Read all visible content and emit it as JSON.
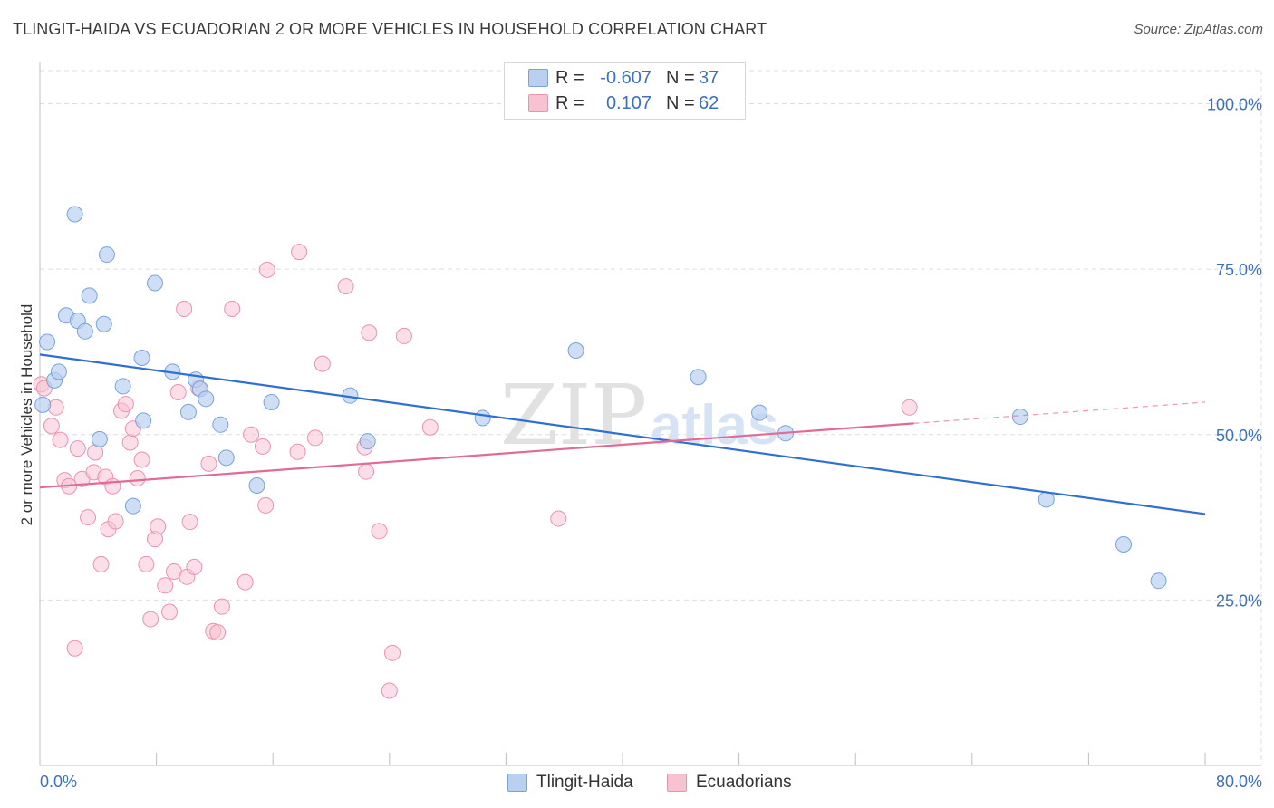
{
  "header": {
    "title": "TLINGIT-HAIDA VS ECUADORIAN 2 OR MORE VEHICLES IN HOUSEHOLD CORRELATION CHART",
    "source": "Source: ZipAtlas.com"
  },
  "watermark": {
    "zip": "ZIP",
    "atlas": "atlas"
  },
  "legend_top": {
    "rows": [
      {
        "r_label": "R =",
        "r_value": "-0.607",
        "n_label": "N =",
        "n_value": "37"
      },
      {
        "r_label": "R =",
        "r_value": "0.107",
        "n_label": "N =",
        "n_value": "62"
      }
    ]
  },
  "legend_bottom": {
    "items": [
      "Tlingit-Haida",
      "Ecuadorians"
    ]
  },
  "colors": {
    "blue_fill": "#b9d0f1",
    "blue_stroke": "#7aa2dc",
    "blue_line": "#2f6fcf",
    "pink_fill": "#f7c3d3",
    "pink_stroke": "#e993ae",
    "pink_line": "#e26a96",
    "tick_text": "#3a6fc4",
    "grid": "#dedede"
  },
  "chart_data": {
    "type": "scatter",
    "title": "TLINGIT-HAIDA VS ECUADORIAN 2 OR MORE VEHICLES IN HOUSEHOLD CORRELATION CHART",
    "xlabel": "",
    "ylabel": "2 or more Vehicles in Household",
    "xlim": [
      0,
      80
    ],
    "ylim": [
      0,
      105
    ],
    "x_tick_labels": [
      "0.0%",
      "80.0%"
    ],
    "y_ticks": [
      25,
      50,
      75,
      100
    ],
    "y_tick_labels": [
      "25.0%",
      "50.0%",
      "75.0%",
      "100.0%"
    ],
    "grid": true,
    "legend_placement": "top-center and bottom",
    "series": [
      {
        "name": "Tlingit-Haida",
        "R": -0.607,
        "N": 37,
        "trend": {
          "x": [
            0,
            80
          ],
          "y": [
            62.1,
            38.0
          ]
        },
        "points": [
          [
            0.2,
            54.5
          ],
          [
            0.5,
            64.0
          ],
          [
            1.0,
            58.2
          ],
          [
            1.3,
            59.5
          ],
          [
            1.8,
            68.0
          ],
          [
            2.4,
            83.3
          ],
          [
            2.6,
            67.2
          ],
          [
            3.1,
            65.6
          ],
          [
            3.4,
            71.0
          ],
          [
            4.1,
            49.3
          ],
          [
            4.4,
            66.7
          ],
          [
            4.6,
            77.2
          ],
          [
            5.7,
            57.3
          ],
          [
            6.4,
            39.2
          ],
          [
            7.0,
            61.6
          ],
          [
            7.1,
            52.1
          ],
          [
            7.9,
            72.9
          ],
          [
            9.1,
            59.5
          ],
          [
            10.2,
            53.4
          ],
          [
            10.7,
            58.3
          ],
          [
            11.0,
            56.9
          ],
          [
            11.4,
            55.4
          ],
          [
            12.4,
            51.5
          ],
          [
            12.8,
            46.5
          ],
          [
            14.9,
            42.3
          ],
          [
            15.9,
            54.9
          ],
          [
            21.3,
            55.9
          ],
          [
            22.5,
            49.0
          ],
          [
            30.4,
            52.5
          ],
          [
            36.8,
            62.7
          ],
          [
            45.2,
            58.7
          ],
          [
            49.4,
            53.3
          ],
          [
            51.2,
            50.2
          ],
          [
            67.3,
            52.7
          ],
          [
            69.1,
            40.2
          ],
          [
            74.4,
            33.4
          ],
          [
            76.8,
            27.9
          ]
        ]
      },
      {
        "name": "Ecuadorians",
        "R": 0.107,
        "N": 62,
        "trend": {
          "x": [
            0,
            60
          ],
          "y": [
            42.0,
            51.7
          ]
        },
        "trend_dashed": {
          "x": [
            60,
            80
          ],
          "y": [
            51.7,
            54.9
          ]
        },
        "points": [
          [
            0.1,
            57.6
          ],
          [
            0.3,
            57.0
          ],
          [
            0.8,
            51.3
          ],
          [
            1.1,
            54.1
          ],
          [
            1.4,
            49.2
          ],
          [
            1.7,
            43.1
          ],
          [
            2.0,
            42.2
          ],
          [
            2.4,
            17.7
          ],
          [
            2.6,
            47.9
          ],
          [
            2.9,
            43.3
          ],
          [
            3.3,
            37.5
          ],
          [
            3.7,
            44.3
          ],
          [
            3.8,
            47.3
          ],
          [
            4.2,
            30.4
          ],
          [
            4.5,
            43.6
          ],
          [
            4.7,
            35.7
          ],
          [
            5.0,
            42.2
          ],
          [
            5.2,
            36.9
          ],
          [
            5.6,
            53.6
          ],
          [
            5.9,
            54.6
          ],
          [
            6.2,
            48.8
          ],
          [
            6.4,
            50.9
          ],
          [
            6.7,
            43.4
          ],
          [
            7.0,
            46.2
          ],
          [
            7.3,
            30.4
          ],
          [
            7.6,
            22.1
          ],
          [
            7.9,
            34.2
          ],
          [
            8.1,
            36.1
          ],
          [
            8.6,
            27.2
          ],
          [
            8.9,
            23.2
          ],
          [
            9.2,
            29.3
          ],
          [
            9.5,
            56.4
          ],
          [
            9.9,
            69.0
          ],
          [
            10.1,
            28.5
          ],
          [
            10.3,
            36.8
          ],
          [
            10.6,
            30.0
          ],
          [
            10.9,
            57.0
          ],
          [
            11.6,
            45.6
          ],
          [
            11.9,
            20.3
          ],
          [
            12.2,
            20.1
          ],
          [
            12.5,
            24.0
          ],
          [
            13.2,
            69.0
          ],
          [
            14.1,
            27.7
          ],
          [
            14.5,
            50.0
          ],
          [
            15.3,
            48.2
          ],
          [
            15.5,
            39.3
          ],
          [
            15.6,
            74.9
          ],
          [
            17.7,
            47.4
          ],
          [
            17.8,
            77.6
          ],
          [
            18.9,
            49.5
          ],
          [
            19.4,
            60.7
          ],
          [
            21.0,
            72.4
          ],
          [
            22.3,
            48.1
          ],
          [
            22.4,
            44.4
          ],
          [
            22.6,
            65.4
          ],
          [
            23.3,
            35.4
          ],
          [
            24.2,
            17.0
          ],
          [
            24.0,
            11.3
          ],
          [
            25.0,
            64.9
          ],
          [
            26.8,
            51.1
          ],
          [
            35.6,
            37.3
          ],
          [
            59.7,
            54.1
          ]
        ]
      }
    ]
  }
}
